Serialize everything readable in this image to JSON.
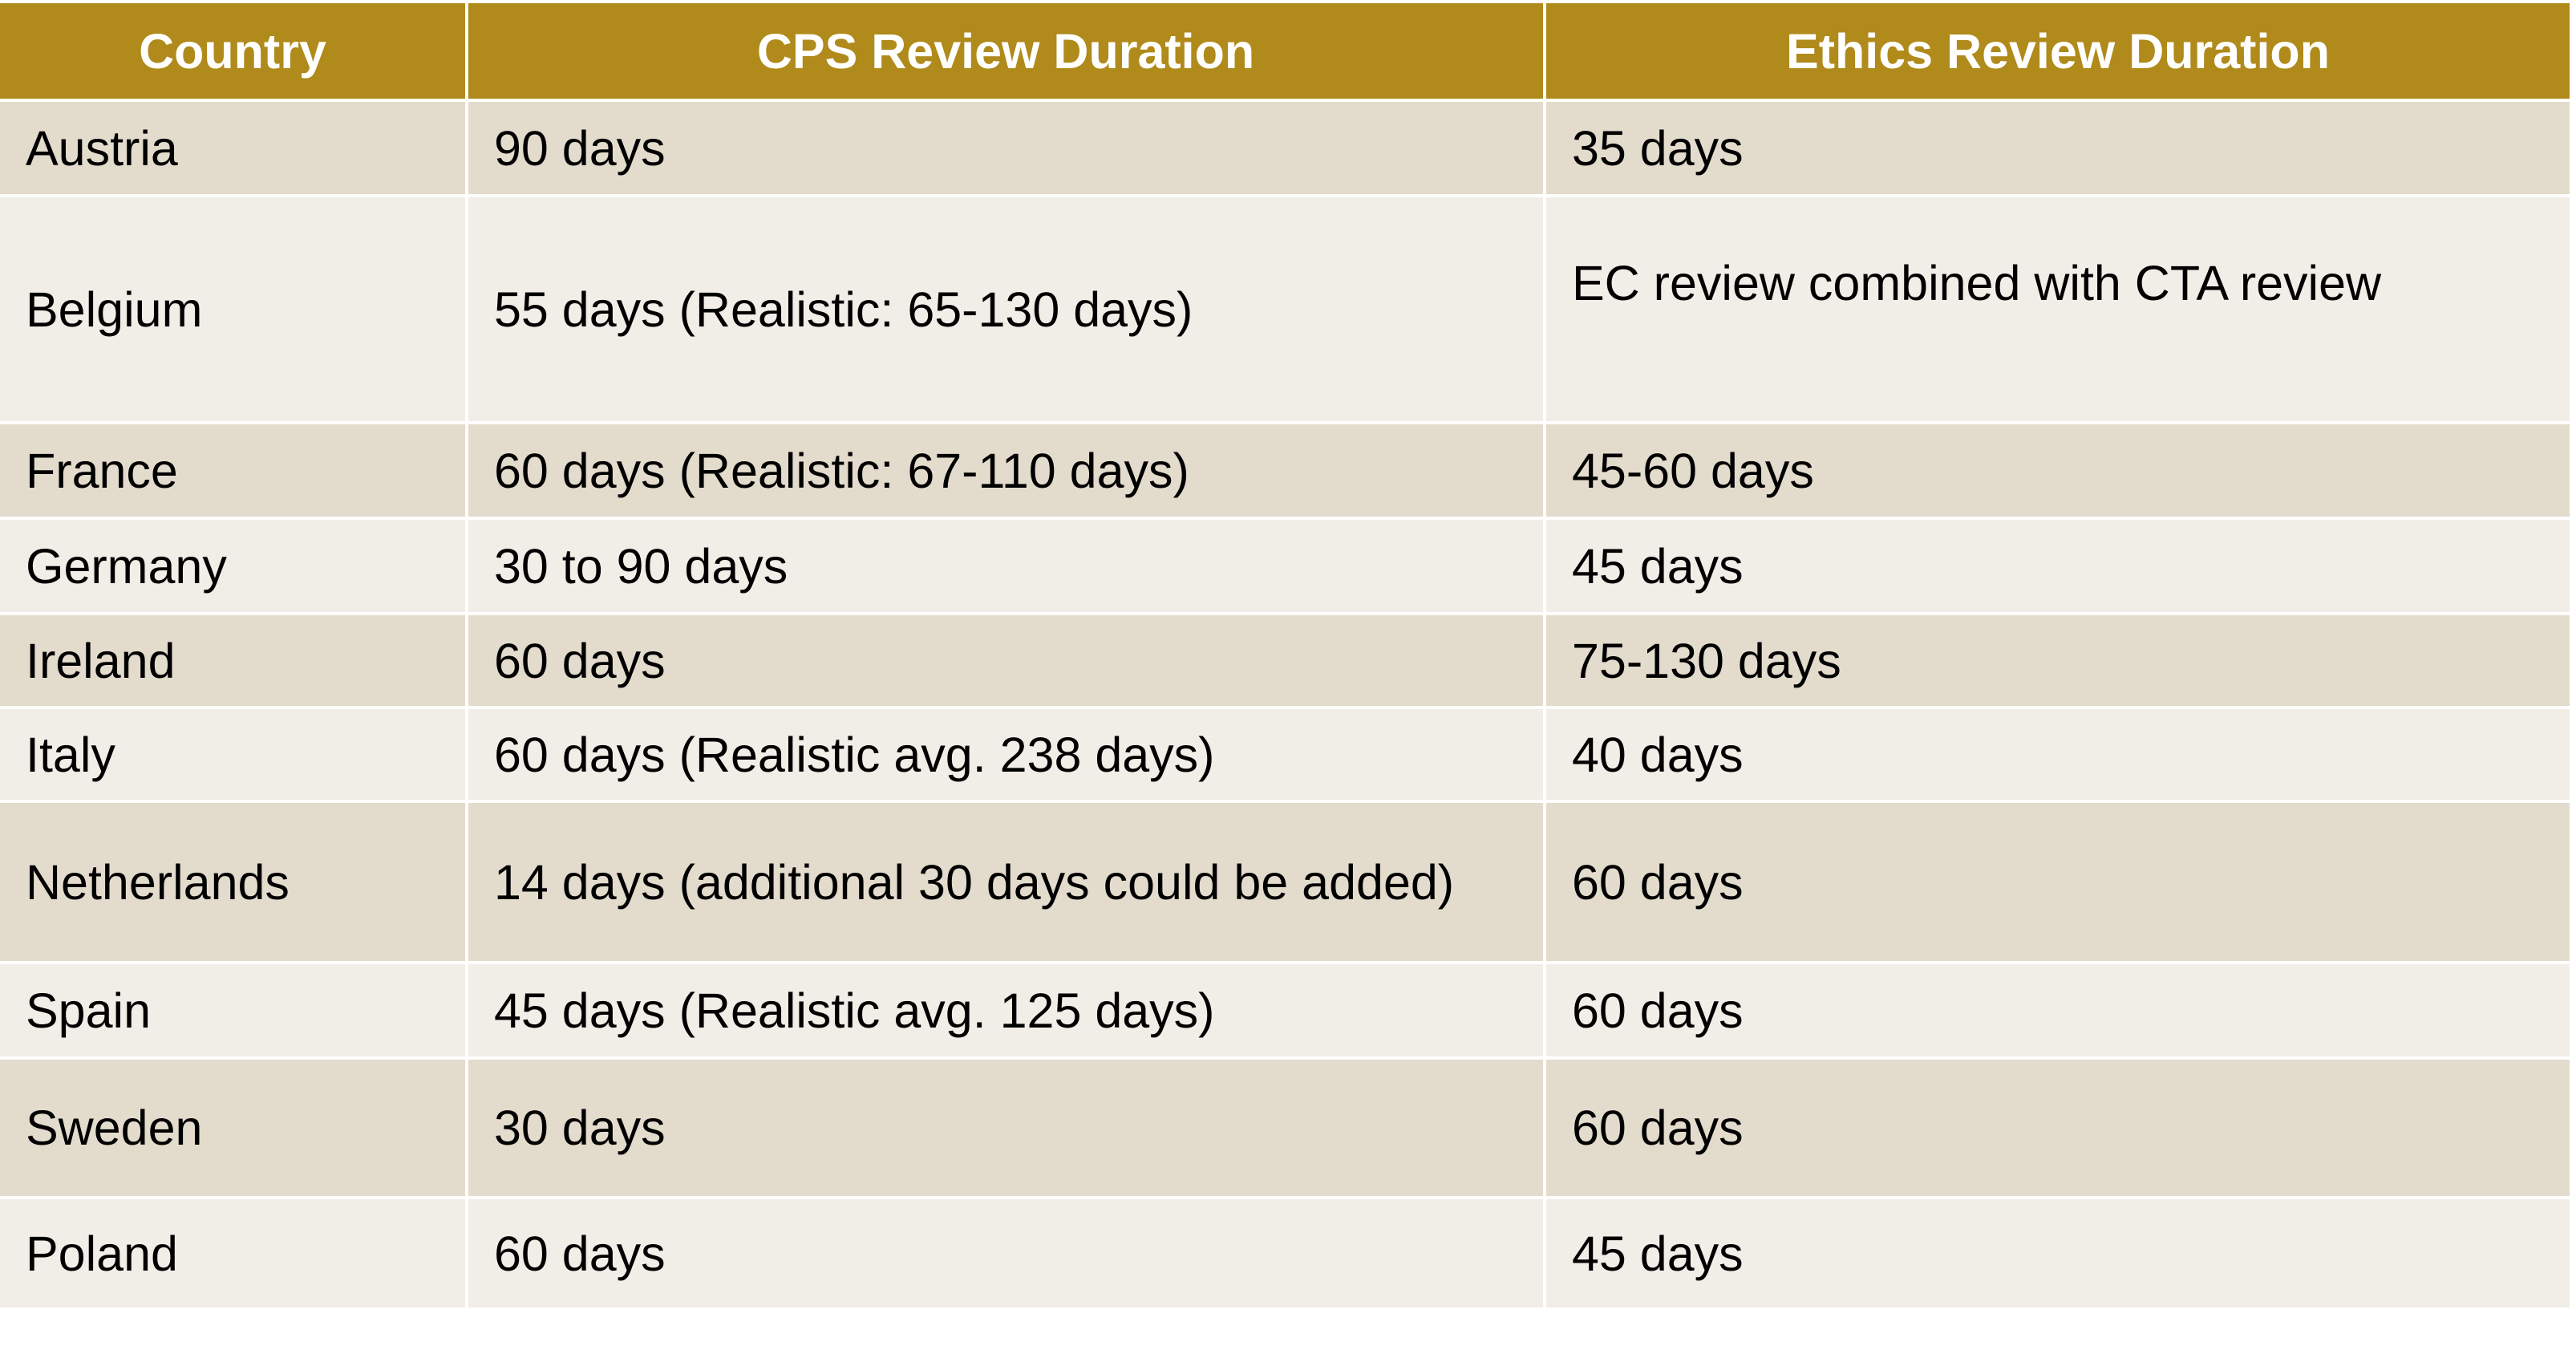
{
  "table": {
    "columns": [
      "Country",
      "CPS Review Duration",
      "Ethics Review Duration"
    ],
    "rows": [
      [
        "Austria",
        "90 days",
        "35 days"
      ],
      [
        "Belgium",
        "55 days (Realistic: 65-130 days)",
        "EC review combined with CTA review"
      ],
      [
        "France",
        "60 days (Realistic: 67-110 days)",
        "45-60 days"
      ],
      [
        "Germany",
        "30 to 90 days",
        "45 days"
      ],
      [
        "Ireland",
        "60 days",
        "75-130 days"
      ],
      [
        "Italy",
        "60 days (Realistic avg. 238 days)",
        "40 days"
      ],
      [
        "Netherlands",
        "14 days (additional 30 days could be added)",
        "60 days"
      ],
      [
        "Spain",
        "45 days (Realistic avg. 125 days)",
        "60 days"
      ],
      [
        "Sweden",
        "30 days",
        "60 days"
      ],
      [
        "Poland",
        "60 days",
        "45 days"
      ]
    ]
  }
}
